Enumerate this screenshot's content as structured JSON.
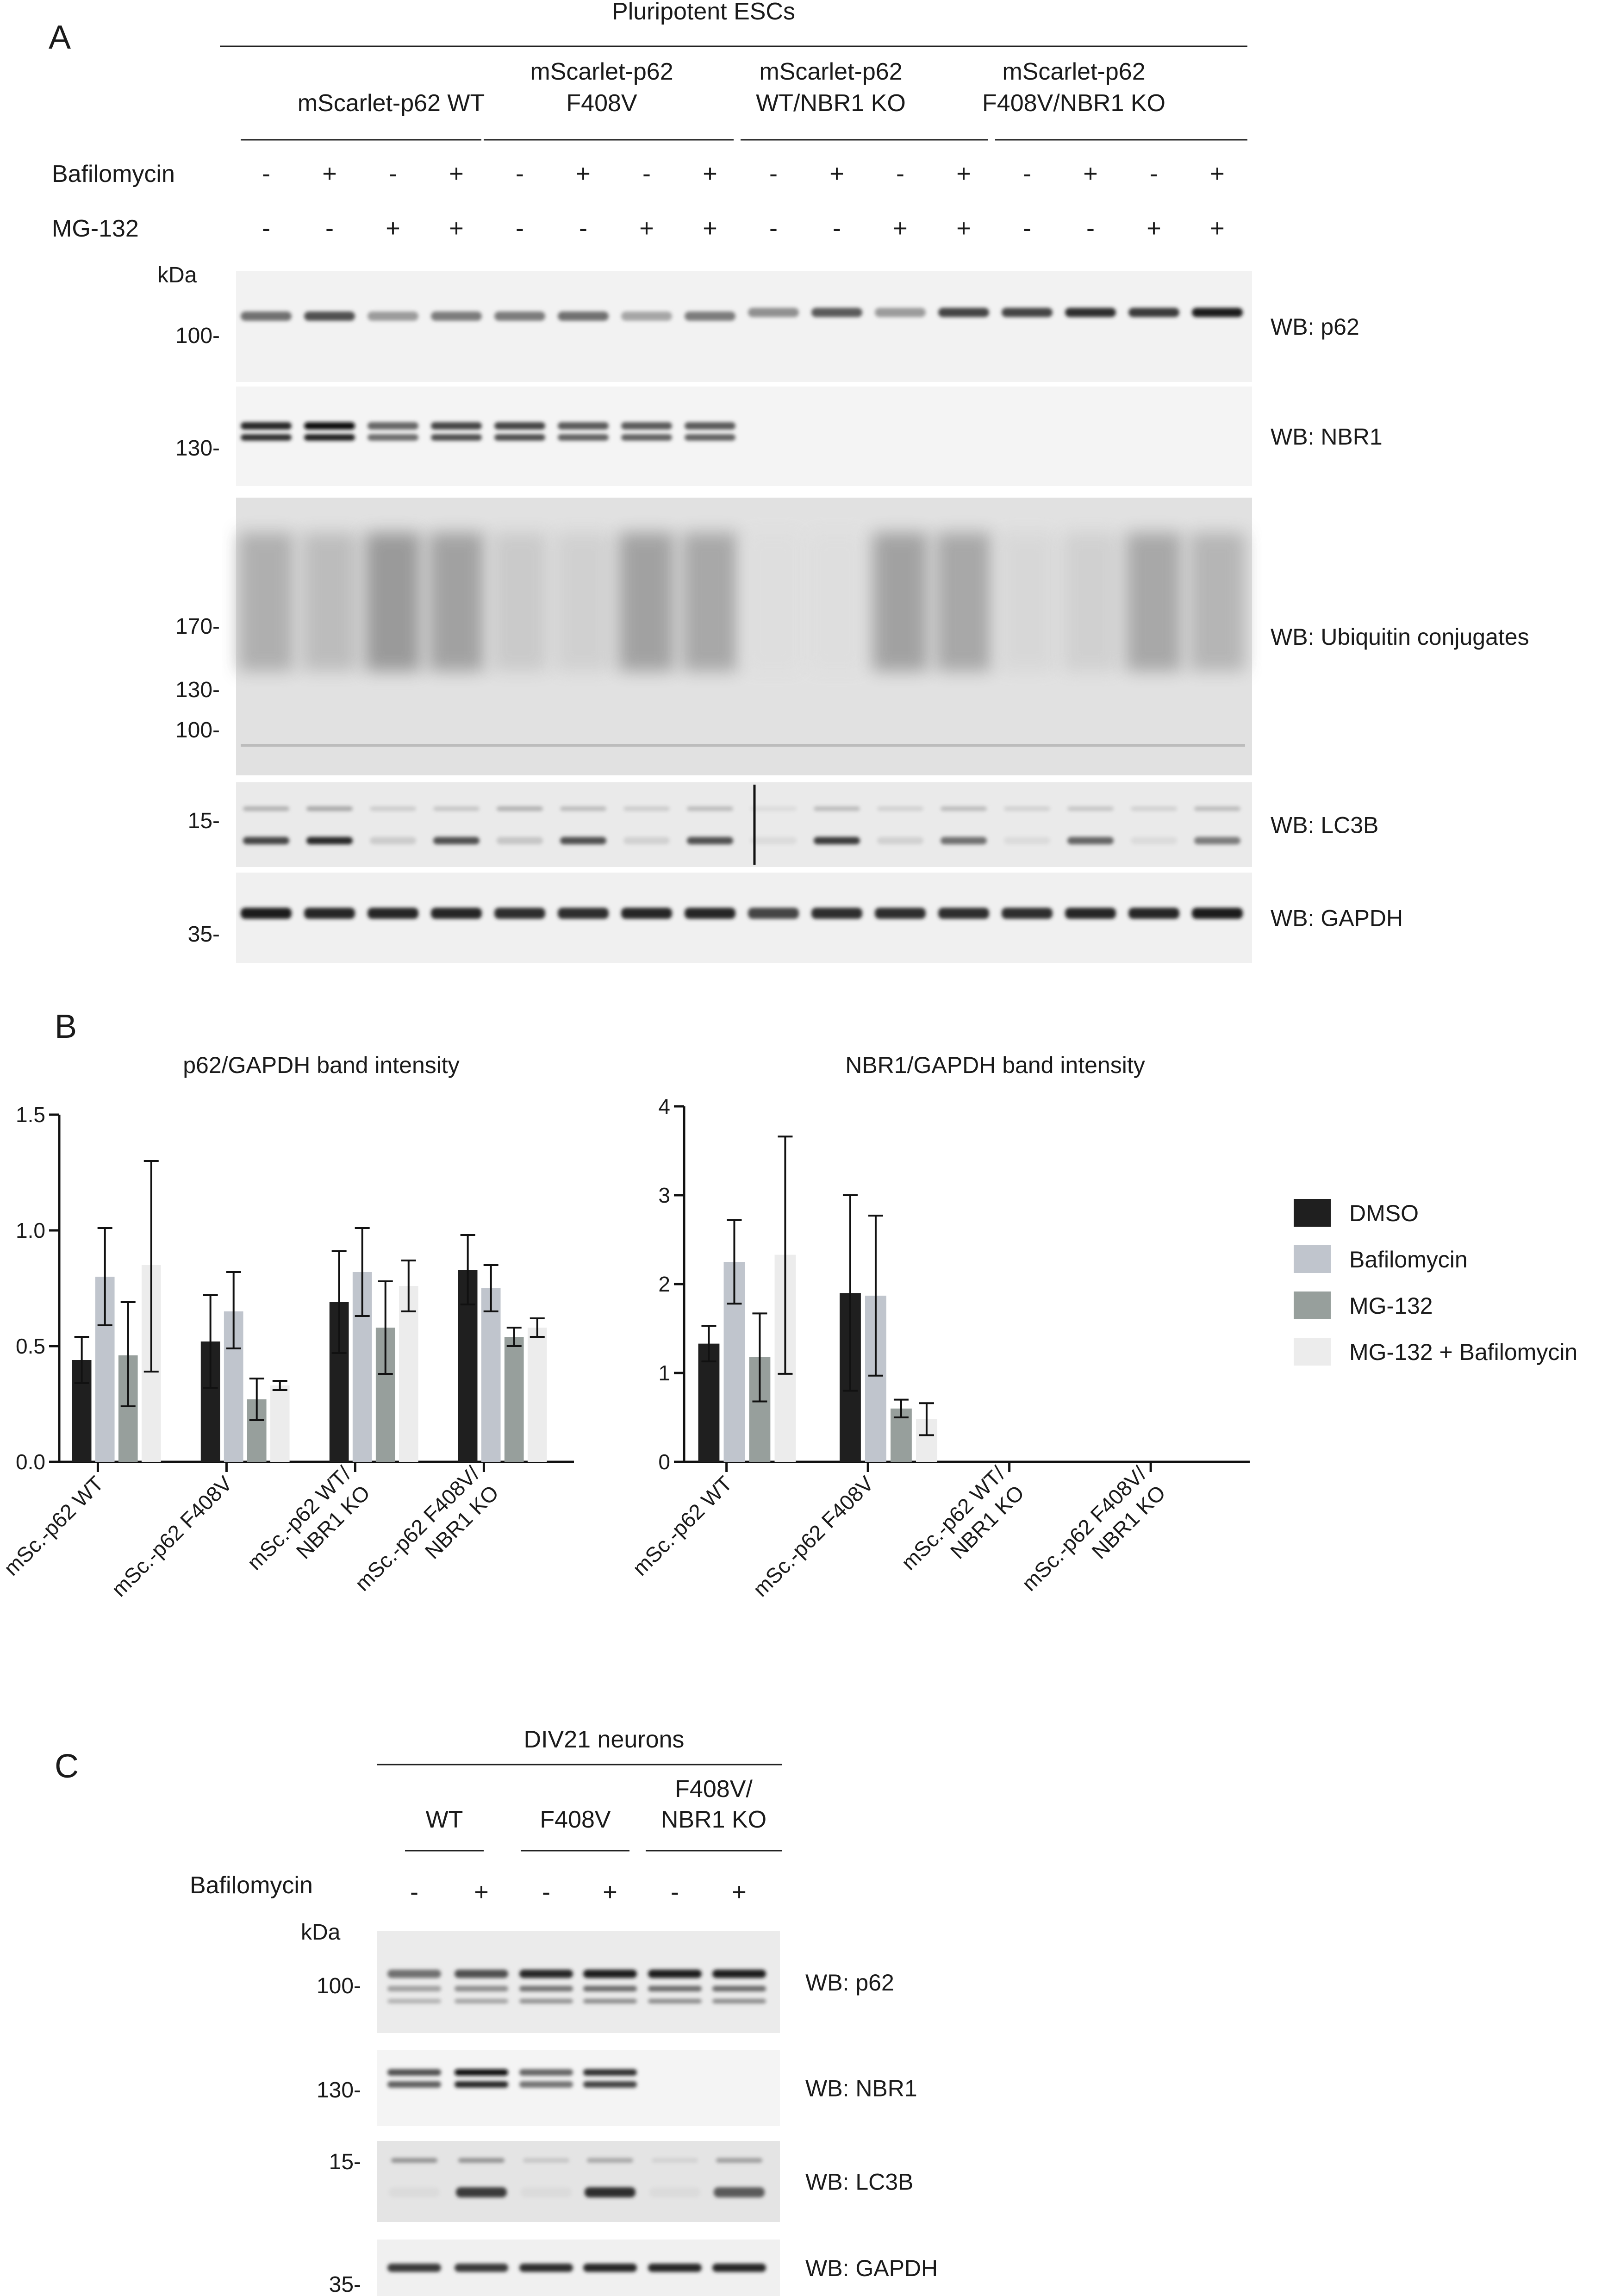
{
  "panelA": {
    "letter": "A",
    "header": "Pluripotent ESCs",
    "groups": [
      {
        "line1": "mScarlet-p62 WT",
        "line2": ""
      },
      {
        "line1": "mScarlet-p62",
        "line2": "F408V"
      },
      {
        "line1": "mScarlet-p62",
        "line2": "WT/NBR1 KO"
      },
      {
        "line1": "mScarlet-p62",
        "line2": "F408V/NBR1 KO"
      }
    ],
    "treatments": [
      {
        "label": "Bafilomycin",
        "signs": [
          "-",
          "+",
          "-",
          "+",
          "-",
          "+",
          "-",
          "+",
          "-",
          "+",
          "-",
          "+",
          "-",
          "+",
          "-",
          "+"
        ]
      },
      {
        "label": "MG-132",
        "signs": [
          "-",
          "-",
          "+",
          "+",
          "-",
          "-",
          "+",
          "+",
          "-",
          "-",
          "+",
          "+",
          "-",
          "-",
          "+",
          "+"
        ]
      }
    ],
    "kda": "kDa",
    "blots": [
      {
        "wb": "WB: p62",
        "markers": [
          "100-"
        ]
      },
      {
        "wb": "WB: NBR1",
        "markers": [
          "130-"
        ]
      },
      {
        "wb": "WB: Ubiquitin conjugates",
        "markers": [
          "170-",
          "130-",
          "100-"
        ]
      },
      {
        "wb": "WB: LC3B",
        "markers": [
          "15-"
        ]
      },
      {
        "wb": "WB: GAPDH",
        "markers": [
          "35-"
        ]
      }
    ],
    "band_levels": {
      "p62": [
        0.55,
        0.7,
        0.35,
        0.5,
        0.5,
        0.55,
        0.3,
        0.5,
        0.4,
        0.65,
        0.35,
        0.75,
        0.75,
        0.85,
        0.8,
        0.95
      ],
      "nbr1": [
        0.9,
        1.0,
        0.6,
        0.75,
        0.75,
        0.65,
        0.65,
        0.65,
        0,
        0,
        0,
        0,
        0,
        0,
        0,
        0
      ],
      "lc3b_top": [
        0.25,
        0.3,
        0.12,
        0.15,
        0.25,
        0.2,
        0.12,
        0.2,
        0.05,
        0.2,
        0.1,
        0.2,
        0.1,
        0.15,
        0.1,
        0.2
      ],
      "lc3b_bottom": [
        0.75,
        0.9,
        0.12,
        0.7,
        0.15,
        0.7,
        0.1,
        0.7,
        0.05,
        0.8,
        0.1,
        0.55,
        0.05,
        0.6,
        0.05,
        0.5
      ],
      "gapdh": [
        0.95,
        0.9,
        0.9,
        0.9,
        0.85,
        0.85,
        0.9,
        0.9,
        0.75,
        0.85,
        0.85,
        0.85,
        0.85,
        0.9,
        0.9,
        0.95
      ],
      "ub_smear": [
        0.4,
        0.3,
        0.55,
        0.5,
        0.2,
        0.15,
        0.5,
        0.45,
        0.05,
        0.05,
        0.5,
        0.45,
        0.1,
        0.15,
        0.45,
        0.35
      ]
    }
  },
  "panelB": {
    "letter": "B",
    "legend": [
      {
        "label": "DMSO",
        "color": "#1f1f1f"
      },
      {
        "label": "Bafilomycin",
        "color": "#c0c5cd"
      },
      {
        "label": "MG-132",
        "color": "#979f9c"
      },
      {
        "label": "MG-132 + Bafilomycin",
        "color": "#ececec"
      }
    ],
    "groups": [
      {
        "line1": "mSc.-p62 WT",
        "line2": ""
      },
      {
        "line1": "mSc.-p62 F408V",
        "line2": ""
      },
      {
        "line1": "mSc.-p62 WT/",
        "line2": "NBR1 KO"
      },
      {
        "line1": "mSc.-p62 F408V/",
        "line2": "NBR1 KO"
      }
    ]
  },
  "chart_data": [
    {
      "type": "bar",
      "title": "p62/GAPDH band intensity",
      "xlabel": "",
      "ylabel": "",
      "ylim": [
        0,
        1.5
      ],
      "yticks": [
        "0.0",
        "0.5",
        "1.0",
        "1.5"
      ],
      "categories": [
        "mSc.-p62 WT",
        "mSc.-p62 F408V",
        "mSc.-p62 WT/ NBR1 KO",
        "mSc.-p62 F408V/ NBR1 KO"
      ],
      "series": [
        {
          "name": "DMSO",
          "values": [
            0.44,
            0.52,
            0.69,
            0.83
          ],
          "err_low": [
            0.34,
            0.32,
            0.47,
            0.68
          ],
          "err_high": [
            0.54,
            0.72,
            0.91,
            0.98
          ]
        },
        {
          "name": "Bafilomycin",
          "values": [
            0.8,
            0.65,
            0.82,
            0.75
          ],
          "err_low": [
            0.59,
            0.49,
            0.63,
            0.65
          ],
          "err_high": [
            1.01,
            0.82,
            1.01,
            0.85
          ]
        },
        {
          "name": "MG-132",
          "values": [
            0.46,
            0.27,
            0.58,
            0.54
          ],
          "err_low": [
            0.24,
            0.18,
            0.38,
            0.5
          ],
          "err_high": [
            0.69,
            0.36,
            0.78,
            0.58
          ]
        },
        {
          "name": "MG-132 + Bafilomycin",
          "values": [
            0.85,
            0.33,
            0.76,
            0.58
          ],
          "err_low": [
            0.39,
            0.31,
            0.65,
            0.54
          ],
          "err_high": [
            1.3,
            0.35,
            0.87,
            0.62
          ]
        }
      ]
    },
    {
      "type": "bar",
      "title": "NBR1/GAPDH band intensity",
      "xlabel": "",
      "ylabel": "",
      "ylim": [
        0,
        4
      ],
      "yticks": [
        "0",
        "1",
        "2",
        "3",
        "4"
      ],
      "categories": [
        "mSc.-p62 WT",
        "mSc.-p62 F408V",
        "mSc.-p62 WT/ NBR1 KO",
        "mSc.-p62 F408V/ NBR1 KO"
      ],
      "series": [
        {
          "name": "DMSO",
          "values": [
            1.33,
            1.9,
            0,
            0
          ],
          "err_low": [
            1.13,
            0.8,
            0,
            0
          ],
          "err_high": [
            1.53,
            3.0,
            0,
            0
          ]
        },
        {
          "name": "Bafilomycin",
          "values": [
            2.25,
            1.87,
            0,
            0
          ],
          "err_low": [
            1.78,
            0.97,
            0,
            0
          ],
          "err_high": [
            2.72,
            2.77,
            0,
            0
          ]
        },
        {
          "name": "MG-132",
          "values": [
            1.18,
            0.6,
            0,
            0
          ],
          "err_low": [
            0.68,
            0.5,
            0,
            0
          ],
          "err_high": [
            1.67,
            0.7,
            0,
            0
          ]
        },
        {
          "name": "MG-132 + Bafilomycin",
          "values": [
            2.33,
            0.48,
            0,
            0
          ],
          "err_low": [
            0.99,
            0.3,
            0,
            0
          ],
          "err_high": [
            3.66,
            0.66,
            0,
            0
          ]
        }
      ]
    }
  ],
  "panelC": {
    "letter": "C",
    "header": "DIV21 neurons",
    "groups": [
      {
        "line1": "WT",
        "line2": ""
      },
      {
        "line1": "F408V",
        "line2": ""
      },
      {
        "line1": "F408V/",
        "line2": "NBR1 KO"
      }
    ],
    "treatment": {
      "label": "Bafilomycin",
      "signs": [
        "-",
        "+",
        "-",
        "+",
        "-",
        "+"
      ]
    },
    "kda": "kDa",
    "blots": [
      {
        "wb": "WB: p62",
        "marker": "100-"
      },
      {
        "wb": "WB: NBR1",
        "marker": "130-"
      },
      {
        "wb": "WB: LC3B",
        "marker": "15-"
      },
      {
        "wb": "WB: GAPDH",
        "marker": "35-"
      }
    ],
    "band_levels": {
      "p62": [
        0.55,
        0.7,
        0.9,
        0.95,
        0.95,
        0.95
      ],
      "nbr1": [
        0.7,
        1.0,
        0.6,
        0.85,
        0,
        0
      ],
      "lc3b_top": [
        0.4,
        0.4,
        0.15,
        0.3,
        0.1,
        0.35
      ],
      "lc3b_bottom": [
        0.05,
        0.8,
        0.05,
        0.85,
        0.05,
        0.65
      ],
      "gapdh": [
        0.8,
        0.8,
        0.85,
        0.9,
        0.9,
        0.9
      ]
    }
  }
}
